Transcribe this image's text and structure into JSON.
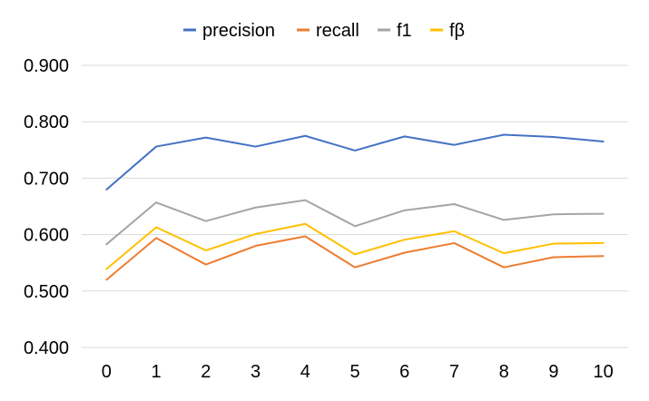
{
  "chart_data": {
    "type": "line",
    "title": "",
    "xlabel": "",
    "ylabel": "",
    "x": [
      0,
      1,
      2,
      3,
      4,
      5,
      6,
      7,
      8,
      9,
      10
    ],
    "x_tick_labels": [
      "0",
      "1",
      "2",
      "3",
      "4",
      "5",
      "6",
      "7",
      "8",
      "9",
      "10"
    ],
    "ylim": [
      0.4,
      0.9
    ],
    "y_ticks": [
      0.4,
      0.5,
      0.6,
      0.7,
      0.8,
      0.9
    ],
    "y_tick_labels": [
      "0.400",
      "0.500",
      "0.600",
      "0.700",
      "0.800",
      "0.900"
    ],
    "grid": true,
    "legend_position": "top",
    "series": [
      {
        "name": "precision",
        "color": "#4472c4",
        "values": [
          0.68,
          0.756,
          0.772,
          0.756,
          0.775,
          0.749,
          0.774,
          0.759,
          0.777,
          0.773,
          0.765
        ]
      },
      {
        "name": "recall",
        "color": "#ed7d31",
        "values": [
          0.52,
          0.594,
          0.547,
          0.58,
          0.597,
          0.542,
          0.568,
          0.585,
          0.542,
          0.56,
          0.562
        ]
      },
      {
        "name": "f1",
        "color": "#a5a5a5",
        "values": [
          0.583,
          0.657,
          0.624,
          0.648,
          0.661,
          0.615,
          0.643,
          0.654,
          0.626,
          0.636,
          0.637
        ]
      },
      {
        "name": "fβ",
        "color": "#ffc000",
        "values": [
          0.539,
          0.613,
          0.572,
          0.601,
          0.619,
          0.565,
          0.591,
          0.606,
          0.567,
          0.584,
          0.585
        ]
      }
    ]
  }
}
